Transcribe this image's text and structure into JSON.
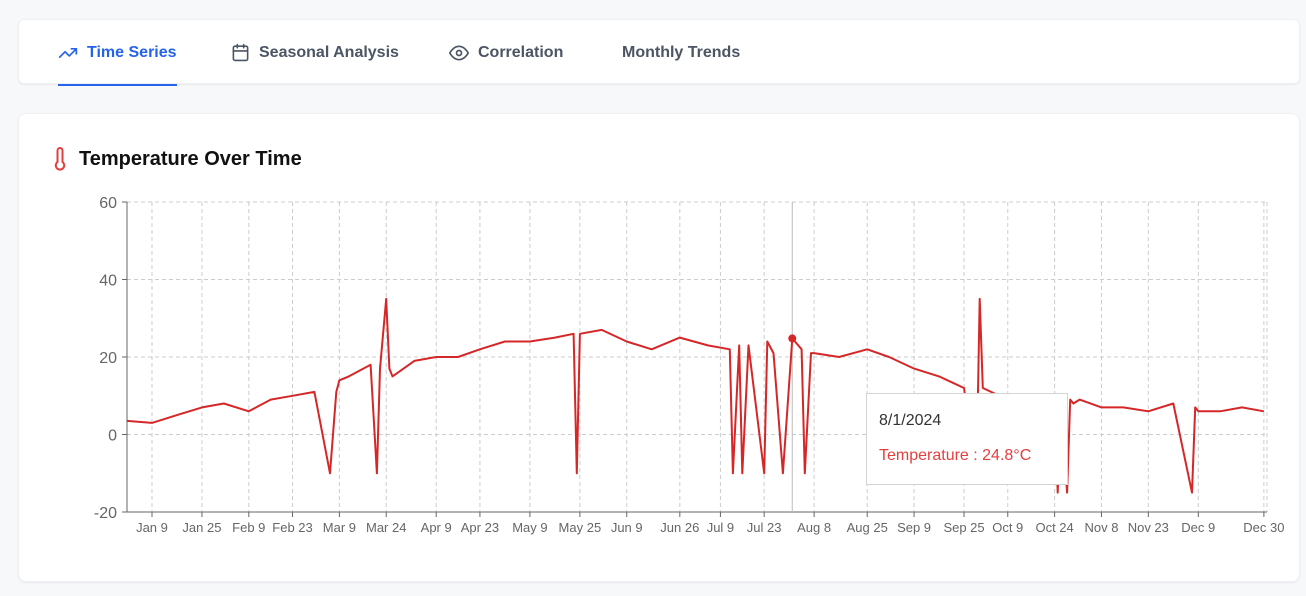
{
  "tabs": [
    {
      "label": "Time Series",
      "icon": "trending-up-icon",
      "active": true
    },
    {
      "label": "Seasonal Analysis",
      "icon": "calendar-icon",
      "active": false
    },
    {
      "label": "Correlation",
      "icon": "eye-icon",
      "active": false
    },
    {
      "label": "Monthly Trends",
      "icon": "",
      "active": false
    }
  ],
  "card": {
    "title": "Temperature Over Time",
    "icon": "thermometer-icon"
  },
  "tooltip": {
    "date": "8/1/2024",
    "text": "Temperature : 24.8°C"
  },
  "colors": {
    "accent": "#2563eb",
    "line": "#d62728",
    "tooltip_text": "#e53e3e",
    "grid": "#cccccc"
  },
  "chart_data": {
    "type": "line",
    "title": "",
    "xlabel": "",
    "ylabel": "",
    "ylim": [
      -20,
      60
    ],
    "yticks": [
      -20,
      0,
      20,
      40,
      60
    ],
    "grid": true,
    "series": [
      {
        "name": "Temperature",
        "unit": "°C"
      }
    ],
    "x_tick_labels": [
      "Jan 9",
      "Jan 25",
      "Feb 9",
      "Feb 23",
      "Mar 9",
      "Mar 24",
      "Apr 9",
      "Apr 23",
      "May 9",
      "May 25",
      "Jun 9",
      "Jun 26",
      "Jul 9",
      "Jul 23",
      "Aug 8",
      "Aug 25",
      "Sep 9",
      "Sep 25",
      "Oct 9",
      "Oct 24",
      "Nov 8",
      "Nov 23",
      "Dec 9",
      "Dec 30"
    ],
    "x": [
      "2024-01-01",
      "2024-01-09",
      "2024-01-17",
      "2024-01-25",
      "2024-02-01",
      "2024-02-09",
      "2024-02-16",
      "2024-02-23",
      "2024-03-01",
      "2024-03-06",
      "2024-03-08",
      "2024-03-09",
      "2024-03-12",
      "2024-03-19",
      "2024-03-21",
      "2024-03-22",
      "2024-03-24",
      "2024-03-25",
      "2024-03-26",
      "2024-04-02",
      "2024-04-09",
      "2024-04-16",
      "2024-04-23",
      "2024-05-01",
      "2024-05-09",
      "2024-05-17",
      "2024-05-23",
      "2024-05-24",
      "2024-05-25",
      "2024-06-01",
      "2024-06-09",
      "2024-06-17",
      "2024-06-26",
      "2024-07-05",
      "2024-07-12",
      "2024-07-13",
      "2024-07-15",
      "2024-07-16",
      "2024-07-18",
      "2024-07-23",
      "2024-07-24",
      "2024-07-26",
      "2024-07-29",
      "2024-08-01",
      "2024-08-04",
      "2024-08-05",
      "2024-08-07",
      "2024-08-08",
      "2024-08-16",
      "2024-08-25",
      "2024-09-01",
      "2024-09-09",
      "2024-09-17",
      "2024-09-25",
      "2024-09-29",
      "2024-09-30",
      "2024-10-01",
      "2024-10-09",
      "2024-10-16",
      "2024-10-24",
      "2024-10-25",
      "2024-10-26",
      "2024-10-28",
      "2024-10-29",
      "2024-10-30",
      "2024-11-01",
      "2024-11-08",
      "2024-11-15",
      "2024-11-23",
      "2024-12-01",
      "2024-12-07",
      "2024-12-08",
      "2024-12-09",
      "2024-12-16",
      "2024-12-23",
      "2024-12-30"
    ],
    "values": [
      3.5,
      3,
      5,
      7,
      8,
      6,
      9,
      10,
      11,
      -10,
      11,
      14,
      15,
      18,
      -10,
      17,
      35,
      17,
      15,
      19,
      20,
      20,
      22,
      24,
      24,
      25,
      26,
      -10,
      26,
      27,
      24,
      22,
      25,
      23,
      22,
      -10,
      23,
      -10,
      23,
      -10,
      24,
      21,
      -10,
      24.8,
      22,
      -10,
      21,
      21,
      20,
      22,
      20,
      17,
      15,
      12,
      -10,
      35,
      12,
      9,
      8,
      10,
      -15,
      9,
      -15,
      9,
      8,
      9,
      7,
      7,
      6,
      8,
      -15,
      7,
      6,
      6,
      7,
      6
    ]
  }
}
